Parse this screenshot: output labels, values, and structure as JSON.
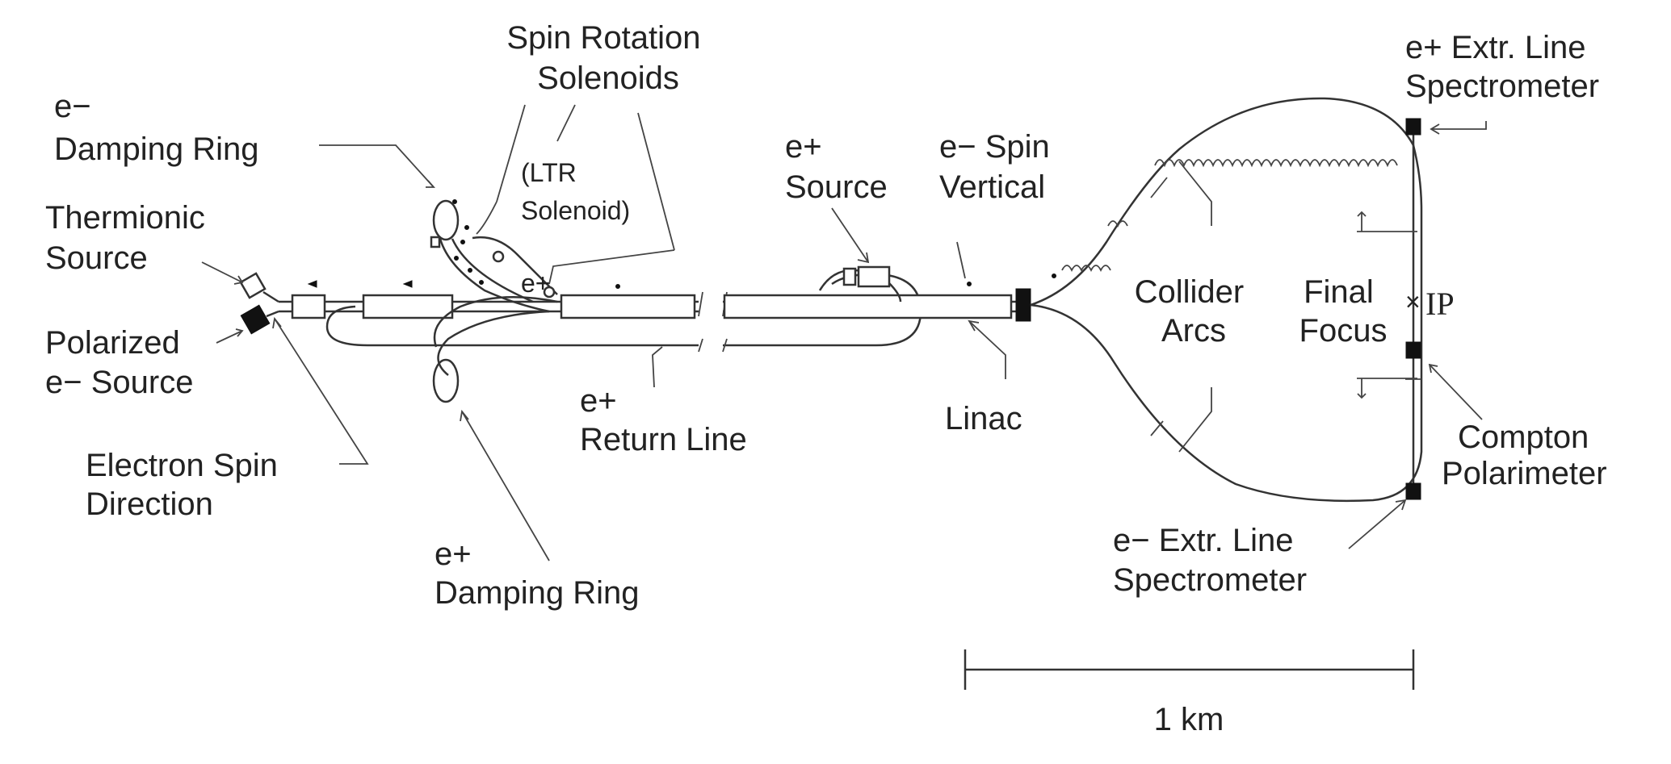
{
  "labels": {
    "spin_rotation": [
      "Spin Rotation",
      "Solenoids"
    ],
    "ltr_solenoid": [
      "(LTR",
      "Solenoid)"
    ],
    "e_minus_damping_ring": [
      "e−",
      "Damping Ring"
    ],
    "thermionic_source": [
      "Thermionic",
      "Source"
    ],
    "polarized_source": [
      "Polarized",
      "e− Source"
    ],
    "electron_spin_direction": [
      "Electron Spin",
      "Direction"
    ],
    "e_plus_damping_ring": [
      "e+",
      "Damping Ring"
    ],
    "e_plus_return_line": [
      "e+",
      "Return Line"
    ],
    "e_plus_source": [
      "e+",
      "Source"
    ],
    "e_minus_spin_vertical": [
      "e− Spin",
      "Vertical"
    ],
    "linac": "Linac",
    "collider_arcs": [
      "Collider",
      "Arcs"
    ],
    "final_focus": [
      "Final",
      "Focus"
    ],
    "ip": "IP",
    "e_plus_extr_spectrometer": [
      "e+ Extr. Line",
      "Spectrometer"
    ],
    "compton_polarimeter": [
      "Compton",
      "Polarimeter"
    ],
    "e_minus_extr_spectrometer": [
      "e− Extr. Line",
      "Spectrometer"
    ],
    "scale_bar": "1 km"
  }
}
